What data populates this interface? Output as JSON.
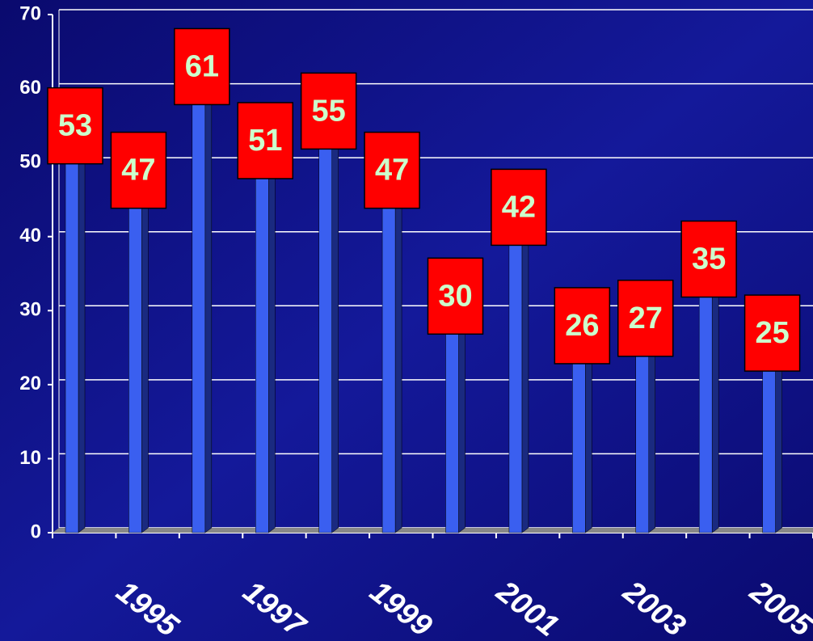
{
  "chart_data": {
    "type": "bar",
    "categories": [
      null,
      "1995",
      null,
      "1997",
      null,
      "1999",
      null,
      "2001",
      null,
      "2003",
      null,
      "2005"
    ],
    "values": [
      53,
      47,
      61,
      51,
      55,
      47,
      30,
      42,
      26,
      27,
      35,
      25
    ],
    "color": "#3a5ff0",
    "label_color": "#ff0000",
    "ylim": [
      0,
      70
    ],
    "yticks": [
      0,
      10,
      20,
      30,
      40,
      50,
      60,
      70
    ],
    "grid": true
  }
}
